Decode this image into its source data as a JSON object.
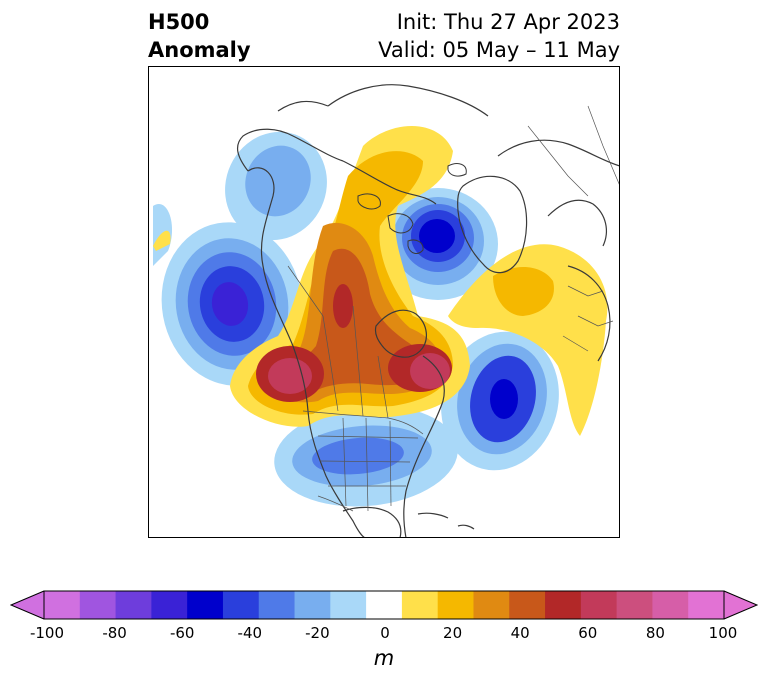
{
  "title": {
    "left_line1": "H500",
    "left_line2": "Anomaly",
    "right_line1": "Init: Thu 27 Apr 2023",
    "right_line2": "Valid: 05 May – 11 May"
  },
  "colorbar": {
    "units": "m",
    "ticks": [
      "-100",
      "-80",
      "-60",
      "-40",
      "-20",
      "0",
      "20",
      "40",
      "60",
      "80",
      "100"
    ],
    "levels": [
      -100,
      -90,
      -80,
      -70,
      -60,
      -50,
      -40,
      -30,
      -20,
      -10,
      10,
      20,
      30,
      40,
      50,
      60,
      70,
      80,
      90,
      100
    ],
    "colors": [
      "#d070e0",
      "#a055e0",
      "#6e3ddc",
      "#3a22d6",
      "#0000cc",
      "#2a3fdc",
      "#4f7ae8",
      "#78aeef",
      "#a9d8f8",
      "#ffffff",
      "#ffe04a",
      "#f5b800",
      "#e08a12",
      "#c8581a",
      "#b22828",
      "#c23a5a",
      "#cc4f7e",
      "#d65ea8",
      "#e272d4"
    ],
    "under_color": "#d070e0",
    "over_color": "#e272d4"
  },
  "map": {
    "projection": "polar-stereographic",
    "region": "North America / North Pole",
    "anomalies": [
      {
        "name": "gulf-of-alaska-low",
        "value": -55
      },
      {
        "name": "alaska-low",
        "value": -25
      },
      {
        "name": "polar-low",
        "value": -65
      },
      {
        "name": "north-atlantic-low",
        "value": -55
      },
      {
        "name": "eastern-us-low",
        "value": -35
      },
      {
        "name": "western-canada-ridge",
        "value": 55
      },
      {
        "name": "pacific-nw-high",
        "value": 65
      },
      {
        "name": "hudson-bay-high",
        "value": 65
      },
      {
        "name": "europe-ridge",
        "value": 25
      }
    ]
  }
}
